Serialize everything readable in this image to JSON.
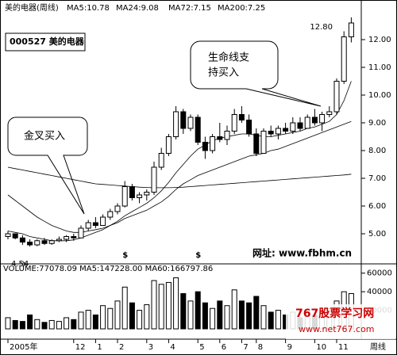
{
  "chart_data": {
    "type": "candlestick",
    "title": "美的电器(周线)",
    "indicators": [
      "MA5:10.78",
      "MA24:9.08",
      "MA72:7.15",
      "MA200:7.25"
    ],
    "stock_label": "000527 美的电器",
    "open": [
      4.9,
      5.0,
      4.85,
      4.7,
      4.6,
      4.75,
      4.65,
      4.75,
      4.8,
      4.9,
      4.85,
      5.2,
      5.4,
      5.3,
      5.6,
      5.8,
      6.0,
      6.7,
      6.3,
      6.4,
      6.5,
      7.4,
      7.9,
      8.5,
      9.4,
      8.8,
      9.2,
      8.3,
      8.0,
      8.5,
      8.4,
      8.7,
      9.3,
      9.1,
      8.6,
      7.9,
      8.7,
      8.6,
      8.8,
      8.7,
      9.0,
      8.8,
      9.2,
      9.0,
      9.3,
      9.4,
      10.5,
      12.1
    ],
    "high": [
      5.1,
      5.0,
      4.95,
      4.8,
      4.8,
      4.85,
      4.8,
      4.9,
      4.95,
      5.0,
      5.3,
      5.5,
      5.6,
      5.7,
      5.9,
      6.1,
      6.9,
      6.8,
      6.5,
      6.6,
      7.6,
      8.1,
      8.6,
      9.6,
      9.5,
      9.3,
      9.3,
      8.5,
      8.6,
      9.0,
      8.9,
      9.5,
      9.6,
      9.3,
      8.8,
      8.8,
      8.9,
      8.9,
      9.0,
      9.2,
      9.2,
      9.3,
      9.5,
      9.4,
      9.6,
      10.6,
      12.3,
      12.8
    ],
    "low": [
      4.8,
      4.8,
      4.6,
      4.54,
      4.55,
      4.6,
      4.6,
      4.7,
      4.7,
      4.75,
      4.85,
      5.1,
      5.2,
      5.3,
      5.5,
      5.7,
      5.95,
      6.2,
      6.1,
      6.2,
      6.4,
      7.3,
      7.8,
      8.4,
      8.6,
      8.7,
      8.2,
      7.7,
      7.9,
      8.3,
      8.2,
      8.6,
      9.0,
      8.5,
      7.8,
      7.9,
      8.5,
      8.4,
      8.6,
      8.6,
      8.7,
      8.8,
      8.9,
      8.7,
      9.2,
      9.3,
      10.4,
      11.9
    ],
    "close": [
      5.0,
      4.85,
      4.7,
      4.6,
      4.75,
      4.65,
      4.75,
      4.8,
      4.9,
      4.85,
      5.2,
      5.4,
      5.3,
      5.6,
      5.8,
      6.0,
      6.7,
      6.3,
      6.4,
      6.5,
      7.4,
      7.9,
      8.5,
      9.4,
      8.8,
      9.2,
      8.3,
      8.0,
      8.5,
      8.4,
      8.7,
      9.3,
      9.1,
      8.6,
      7.9,
      8.7,
      8.6,
      8.8,
      8.7,
      9.0,
      8.8,
      9.2,
      9.0,
      9.3,
      9.4,
      10.5,
      12.1,
      12.6
    ],
    "up_color": "#ffffff",
    "down_color": "#000000",
    "series": [
      {
        "color": "#000000",
        "values": [
          5.1,
          5.05,
          5.0,
          4.9,
          4.85,
          4.8,
          4.75,
          4.75,
          4.75,
          4.78,
          4.85,
          4.95,
          5.05,
          5.15,
          5.3,
          5.45,
          5.65,
          5.8,
          5.95,
          6.1,
          6.3,
          6.55,
          6.85,
          7.2,
          7.5,
          7.8,
          8.05,
          8.2,
          8.35,
          8.45,
          8.5,
          8.55,
          8.6,
          8.6,
          8.55,
          8.5,
          8.5,
          8.55,
          8.6,
          8.65,
          8.7,
          8.8,
          8.85,
          8.95,
          9.05,
          9.3,
          9.8,
          10.5
        ]
      },
      {
        "color": "#000000",
        "values": [
          6.4,
          6.2,
          6.0,
          5.8,
          5.6,
          5.45,
          5.3,
          5.2,
          5.1,
          5.05,
          5.05,
          5.1,
          5.15,
          5.2,
          5.3,
          5.4,
          5.55,
          5.65,
          5.75,
          5.85,
          6.0,
          6.15,
          6.35,
          6.6,
          6.8,
          6.95,
          7.1,
          7.2,
          7.3,
          7.4,
          7.5,
          7.6,
          7.7,
          7.8,
          7.85,
          7.9,
          8.0,
          8.05,
          8.15,
          8.25,
          8.35,
          8.45,
          8.55,
          8.65,
          8.75,
          8.85,
          8.95,
          9.05
        ]
      },
      {
        "color": "#000000",
        "values": [
          7.4,
          7.35,
          7.3,
          7.25,
          7.2,
          7.15,
          7.1,
          7.05,
          7.0,
          6.95,
          6.9,
          6.85,
          6.8,
          6.78,
          6.76,
          6.74,
          6.72,
          6.7,
          6.68,
          6.67,
          6.66,
          6.66,
          6.66,
          6.67,
          6.68,
          6.7,
          6.72,
          6.74,
          6.76,
          6.78,
          6.8,
          6.82,
          6.84,
          6.86,
          6.88,
          6.9,
          6.92,
          6.94,
          6.96,
          6.98,
          7.0,
          7.02,
          7.04,
          7.06,
          7.08,
          7.1,
          7.12,
          7.15
        ]
      }
    ],
    "ylim": [
      4,
      13
    ],
    "yticks": [
      {
        "value": 5,
        "label": "5.00"
      },
      {
        "value": 6,
        "label": "6.00"
      },
      {
        "value": 7,
        "label": "7.00"
      },
      {
        "value": 8,
        "label": "8.00"
      },
      {
        "value": 9,
        "label": "9.00"
      },
      {
        "value": 10,
        "label": "10.00"
      },
      {
        "value": 11,
        "label": "11.00"
      },
      {
        "value": 12,
        "label": "12.00"
      }
    ],
    "high_label": {
      "value": 12.8,
      "label": "12.80"
    },
    "low_label": {
      "value": 4.54,
      "label": "4.54"
    },
    "annotations": [
      {
        "text": [
          "金叉买入"
        ]
      },
      {
        "text": [
          "生命线支",
          "持买入"
        ]
      }
    ],
    "events": [
      {
        "index": 16,
        "label": "$"
      },
      {
        "index": 26,
        "label": "$"
      }
    ],
    "website": "网址: www.fbhm.cn",
    "volume_title": "VOLUME:77078.09 MA5:147228.00 MA60:166797.86",
    "volume": [
      12000,
      9000,
      8000,
      15000,
      10000,
      7000,
      9000,
      8000,
      12000,
      10000,
      18000,
      20000,
      15000,
      25000,
      22000,
      30000,
      45000,
      28000,
      20000,
      26000,
      52000,
      48000,
      50000,
      55000,
      38000,
      30000,
      40000,
      28000,
      22000,
      30000,
      25000,
      42000,
      30000,
      28000,
      35000,
      25000,
      18000,
      20000,
      15000,
      18000,
      12000,
      20000,
      15000,
      18000,
      22000,
      30000,
      40000,
      38000
    ],
    "vol_ylim": [
      0,
      70000
    ],
    "vol_yticks": [
      20000,
      40000,
      60000
    ],
    "x_labels": [
      {
        "value": 0,
        "label": "2005年"
      },
      {
        "value": 9,
        "label": "12"
      },
      {
        "value": 12,
        "label": "1"
      },
      {
        "value": 15,
        "label": "2"
      },
      {
        "value": 19,
        "label": "3"
      },
      {
        "value": 22,
        "label": "4"
      },
      {
        "value": 26,
        "label": "5"
      },
      {
        "value": 29,
        "label": "6"
      },
      {
        "value": 32,
        "label": "7"
      },
      {
        "value": 34,
        "label": "8"
      },
      {
        "value": 38,
        "label": "9"
      },
      {
        "value": 42,
        "label": "10"
      },
      {
        "value": 45,
        "label": "11"
      }
    ],
    "period_label": "周线",
    "watermark": {
      "name": "767股票学习网",
      "url": "www.net767.com"
    }
  }
}
